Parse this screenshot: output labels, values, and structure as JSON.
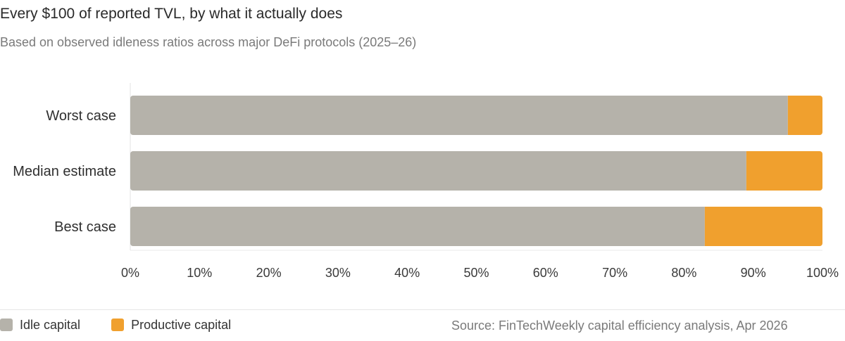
{
  "header": {
    "title": "Every $100 of reported TVL, by what it actually does",
    "subtitle": "Based on observed idleness ratios across major DeFi protocols (2025–26)"
  },
  "chart_data": {
    "type": "bar",
    "orientation": "horizontal",
    "stacked": true,
    "categories": [
      "Worst case",
      "Median estimate",
      "Best case"
    ],
    "series": [
      {
        "name": "Idle capital",
        "color": "#b5b2aa",
        "values": [
          95,
          89,
          83
        ]
      },
      {
        "name": "Productive capital",
        "color": "#f0a02e",
        "values": [
          5,
          11,
          17
        ]
      }
    ],
    "xlim": [
      0,
      100
    ],
    "xticks": [
      0,
      10,
      20,
      30,
      40,
      50,
      60,
      70,
      80,
      90,
      100
    ],
    "xtick_labels": [
      "0%",
      "10%",
      "20%",
      "30%",
      "40%",
      "50%",
      "60%",
      "70%",
      "80%",
      "90%",
      "100%"
    ],
    "grid": false,
    "legend_position": "bottom-left"
  },
  "legend": {
    "items": [
      {
        "label": "Idle capital",
        "color": "#b5b2aa"
      },
      {
        "label": "Productive capital",
        "color": "#f0a02e"
      }
    ]
  },
  "footer": {
    "source": "Source: FinTechWeekly capital efficiency analysis, Apr 2026"
  }
}
